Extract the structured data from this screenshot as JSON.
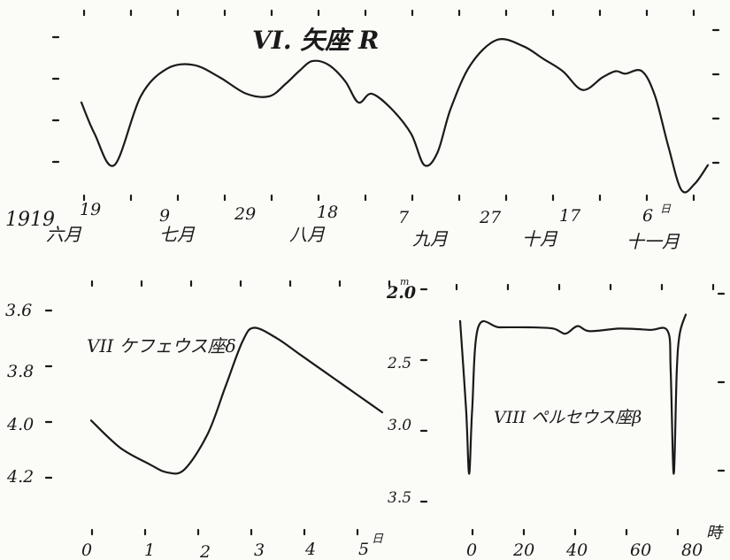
{
  "chart_data": [
    {
      "type": "line",
      "title": "VI. 矢座 R",
      "year_label": "1919",
      "x": [
        0,
        4,
        10,
        18,
        26,
        34,
        42,
        50,
        57,
        62,
        66,
        70,
        75,
        80,
        84,
        88,
        94,
        100,
        104,
        108,
        112,
        118,
        126,
        134,
        140,
        146,
        152,
        158,
        162,
        165,
        170,
        174,
        178,
        182,
        186,
        190
      ],
      "values": [
        0.55,
        0.3,
        0.05,
        0.6,
        0.82,
        0.85,
        0.75,
        0.62,
        0.6,
        0.7,
        0.8,
        0.88,
        0.85,
        0.72,
        0.55,
        0.62,
        0.5,
        0.3,
        0.05,
        0.15,
        0.5,
        0.85,
        1.05,
        1.0,
        0.9,
        0.8,
        0.65,
        0.75,
        0.8,
        0.78,
        0.8,
        0.6,
        0.2,
        -0.15,
        -0.1,
        0.05
      ],
      "tick_labels": [
        "19",
        "9",
        "29",
        "18",
        "7",
        "27",
        "17",
        "6",
        "日"
      ],
      "month_labels": [
        "六月",
        "七月",
        "八月",
        "九月",
        "十月",
        "十一月"
      ]
    },
    {
      "type": "line",
      "title": "VII ケフェウス座δ",
      "x": [
        0,
        0.5,
        1.0,
        1.3,
        1.6,
        2.0,
        2.3,
        2.6,
        2.8,
        3.2,
        3.6,
        4.0,
        4.4,
        4.8,
        5.0
      ],
      "values": [
        4.0,
        4.1,
        4.16,
        4.19,
        4.18,
        4.05,
        3.88,
        3.71,
        3.66,
        3.7,
        3.76,
        3.82,
        3.88,
        3.94,
        3.97
      ],
      "y_ticks": [
        "3.6",
        "3.8",
        "4.0",
        "4.2"
      ],
      "x_ticks": [
        "0",
        "1",
        "2",
        "3",
        "4",
        "5"
      ],
      "x_unit": "日"
    },
    {
      "type": "line",
      "title": "VIII ペルセウス座β",
      "x": [
        -3,
        -1,
        0,
        1,
        3,
        10,
        20,
        28,
        32,
        36,
        40,
        50,
        60,
        66,
        67,
        68,
        69,
        70,
        72
      ],
      "values": [
        2.2,
        2.9,
        3.4,
        2.9,
        2.25,
        2.25,
        2.25,
        2.26,
        2.3,
        2.24,
        2.28,
        2.26,
        2.27,
        2.28,
        2.6,
        3.4,
        2.6,
        2.3,
        2.15
      ],
      "y_ticks": [
        "2.0",
        "2.5",
        "3.0",
        "3.5"
      ],
      "y_superscript": "m",
      "x_ticks": [
        "0",
        "20",
        "40",
        "60",
        "80"
      ],
      "x_unit": "時"
    }
  ]
}
